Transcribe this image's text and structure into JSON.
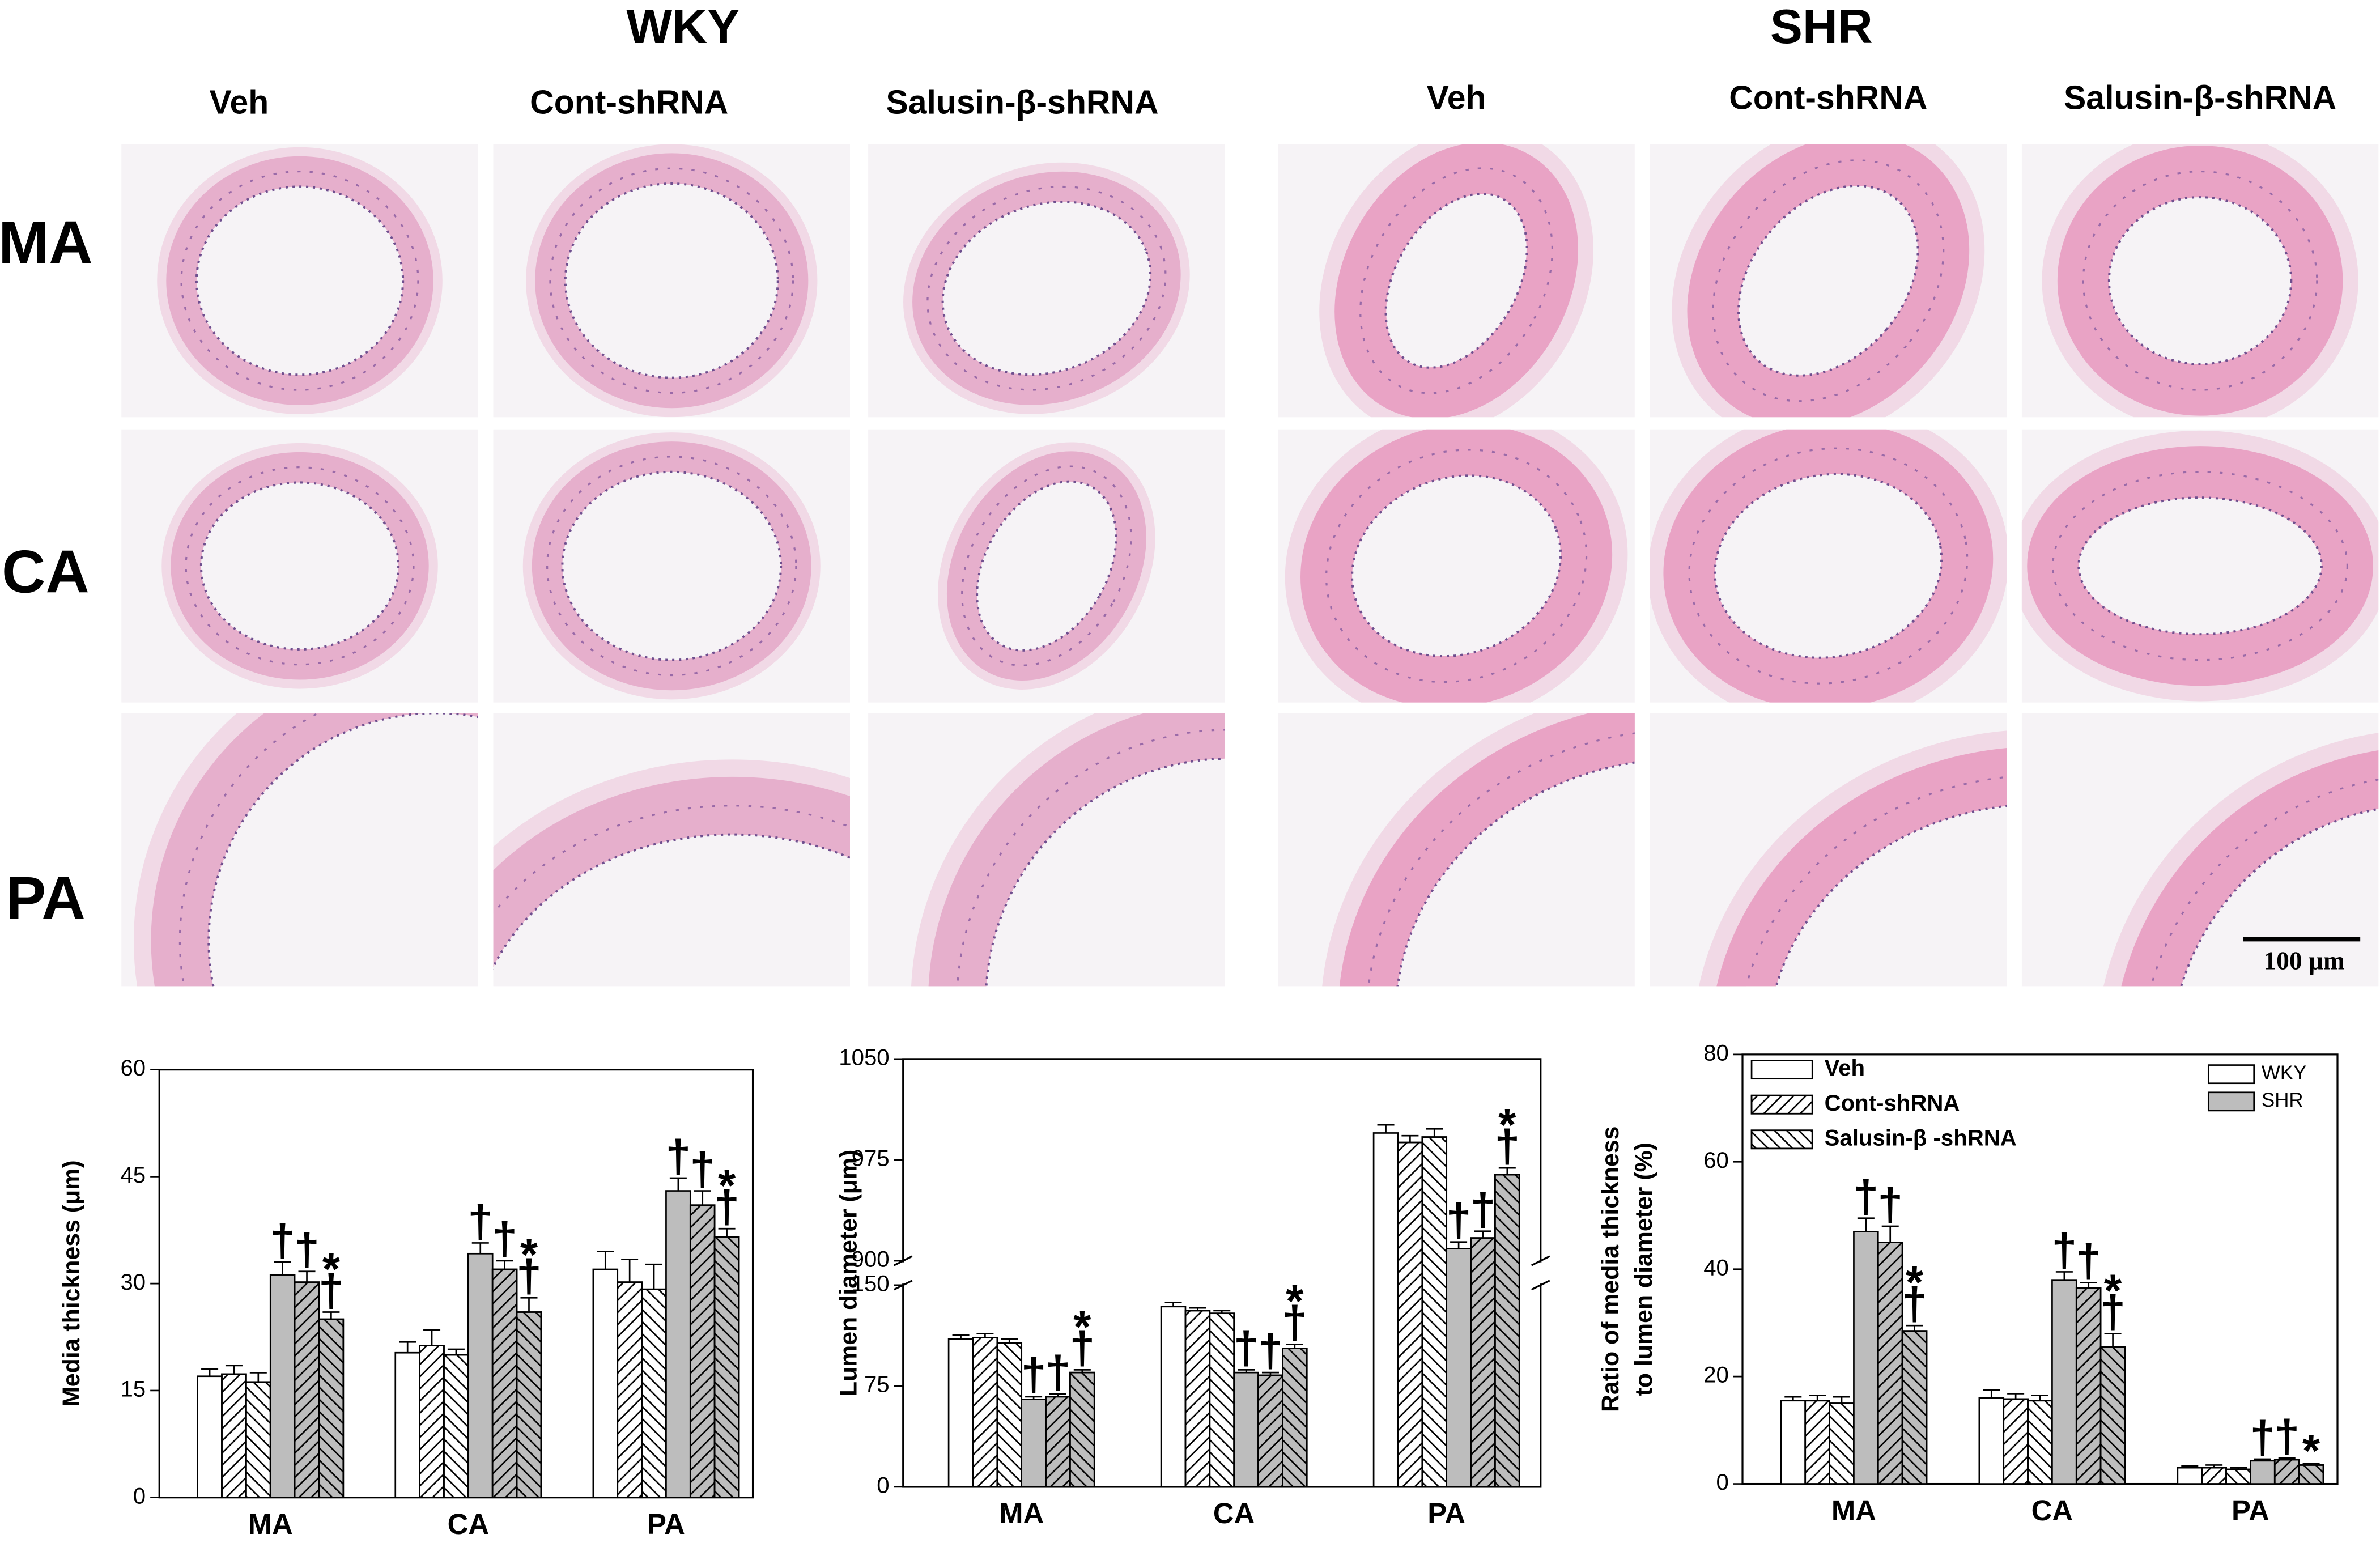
{
  "figure": {
    "groups": [
      "WKY",
      "SHR"
    ],
    "columns": [
      "Veh",
      "Cont-shRNA",
      "Salusin-β-shRNA",
      "Veh",
      "Cont-shRNA",
      "Salusin-β-shRNA"
    ],
    "rows": [
      "MA",
      "CA",
      "PA"
    ],
    "scale_bar": "100 μm"
  },
  "chart_data": [
    {
      "type": "bar",
      "ylabel": [
        "Media thickness (μm)"
      ],
      "categories": [
        "MA",
        "CA",
        "PA"
      ],
      "ylim": [
        0,
        60
      ],
      "yticks": [
        0,
        15,
        30,
        45,
        60
      ],
      "series": [
        {
          "color": "#ffffff",
          "hatch": "none",
          "values": [
            17,
            20.3,
            32
          ],
          "errors": [
            1,
            1.5,
            2.5
          ]
        },
        {
          "color": "#ffffff",
          "hatch": "/",
          "values": [
            17.3,
            21.3,
            30.2
          ],
          "errors": [
            1.2,
            2.2,
            3.2
          ]
        },
        {
          "color": "#ffffff",
          "hatch": "\\",
          "values": [
            16.2,
            20,
            29.2
          ],
          "errors": [
            1.3,
            0.8,
            3.5
          ]
        },
        {
          "color": "#bdbdbd",
          "hatch": "none",
          "values": [
            31.2,
            34.2,
            43
          ],
          "errors": [
            1.8,
            1.5,
            1.8
          ],
          "annotations": [
            "†",
            "†",
            "†"
          ]
        },
        {
          "color": "#bdbdbd",
          "hatch": "/",
          "values": [
            30.2,
            32,
            41
          ],
          "errors": [
            1.5,
            1.2,
            2
          ],
          "annotations": [
            "†",
            "†",
            "†"
          ]
        },
        {
          "color": "#bdbdbd",
          "hatch": "\\",
          "values": [
            25,
            26,
            36.5
          ],
          "errors": [
            1,
            2,
            1.2
          ],
          "annotations": [
            "*†",
            "*†",
            "*†"
          ]
        }
      ]
    },
    {
      "type": "bar",
      "ylabel": [
        "Lumen diameter (μm)"
      ],
      "categories": [
        "MA",
        "CA",
        "PA"
      ],
      "ylim": [
        0,
        1050
      ],
      "ybreak": [
        150,
        900
      ],
      "yticks": [
        0,
        75,
        150,
        900,
        975,
        1050
      ],
      "series": [
        {
          "color": "#ffffff",
          "hatch": "none",
          "values": [
            110,
            134,
            995
          ],
          "errors": [
            3,
            3,
            6
          ]
        },
        {
          "color": "#ffffff",
          "hatch": "/",
          "values": [
            111,
            131,
            988
          ],
          "errors": [
            3,
            2,
            5
          ]
        },
        {
          "color": "#ffffff",
          "hatch": "\\",
          "values": [
            107,
            129,
            992
          ],
          "errors": [
            3,
            2,
            6
          ]
        },
        {
          "color": "#bdbdbd",
          "hatch": "none",
          "values": [
            65,
            85,
            909
          ],
          "errors": [
            2,
            2,
            5
          ],
          "annotations": [
            "†",
            "†",
            "†"
          ]
        },
        {
          "color": "#bdbdbd",
          "hatch": "/",
          "values": [
            67,
            83,
            917
          ],
          "errors": [
            2,
            2,
            5
          ],
          "annotations": [
            "†",
            "†",
            "†"
          ]
        },
        {
          "color": "#bdbdbd",
          "hatch": "\\",
          "values": [
            85,
            103,
            964
          ],
          "errors": [
            2,
            3,
            5
          ],
          "annotations": [
            "*†",
            "*†",
            "*†"
          ]
        }
      ]
    },
    {
      "type": "bar",
      "ylabel": [
        "Ratio of media thickness",
        "to lumen diameter (%)"
      ],
      "categories": [
        "MA",
        "CA",
        "PA"
      ],
      "ylim": [
        0,
        80
      ],
      "yticks": [
        0,
        20,
        40,
        60,
        80
      ],
      "legend_items": {
        "hatch": [
          {
            "name": "Veh",
            "hatch": "none"
          },
          {
            "name": "Cont-shRNA",
            "hatch": "/"
          },
          {
            "name": "Salusin-β -shRNA",
            "hatch": "\\"
          }
        ],
        "fill": [
          {
            "name": "WKY",
            "color": "#ffffff"
          },
          {
            "name": "SHR",
            "color": "#bdbdbd"
          }
        ]
      },
      "series": [
        {
          "color": "#ffffff",
          "hatch": "none",
          "values": [
            15.5,
            16,
            3
          ],
          "errors": [
            0.7,
            1.5,
            0.3
          ]
        },
        {
          "color": "#ffffff",
          "hatch": "/",
          "values": [
            15.5,
            15.8,
            3
          ],
          "errors": [
            1,
            1,
            0.5
          ]
        },
        {
          "color": "#ffffff",
          "hatch": "\\",
          "values": [
            15,
            15.5,
            2.7
          ],
          "errors": [
            1.2,
            1,
            0.3
          ]
        },
        {
          "color": "#bdbdbd",
          "hatch": "none",
          "values": [
            47,
            38,
            4.3
          ],
          "errors": [
            2.5,
            1.5,
            0.3
          ],
          "annotations": [
            "†",
            "†",
            "†"
          ]
        },
        {
          "color": "#bdbdbd",
          "hatch": "/",
          "values": [
            45,
            36.5,
            4.5
          ],
          "errors": [
            3,
            1,
            0.3
          ],
          "annotations": [
            "†",
            "†",
            "†"
          ]
        },
        {
          "color": "#bdbdbd",
          "hatch": "\\",
          "values": [
            28.5,
            25.5,
            3.5
          ],
          "errors": [
            1,
            2.5,
            0.3
          ],
          "annotations": [
            "*†",
            "*†",
            "*"
          ]
        }
      ]
    }
  ]
}
